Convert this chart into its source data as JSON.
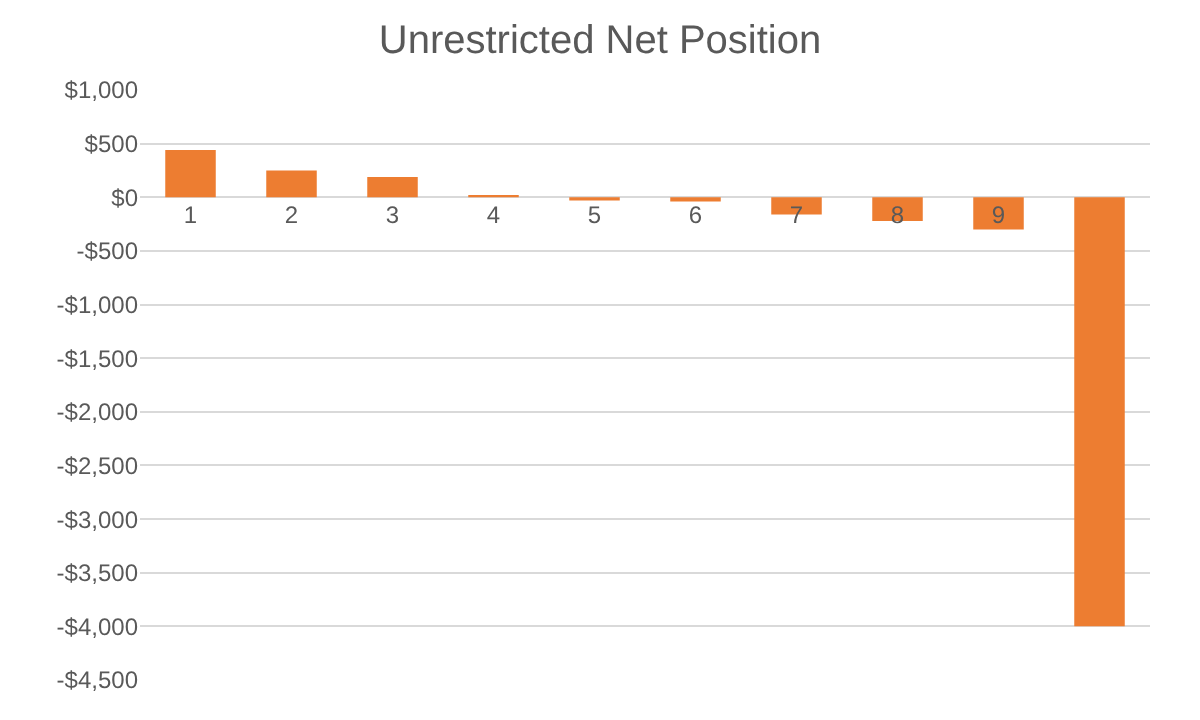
{
  "chart_data": {
    "type": "bar",
    "title": "Unrestricted Net Position",
    "categories": [
      "1",
      "2",
      "3",
      "4",
      "5",
      "6",
      "7",
      "8",
      "9",
      null
    ],
    "values": [
      440,
      250,
      190,
      20,
      -30,
      -40,
      -160,
      -220,
      -300,
      -4000
    ],
    "color": "#ed7d31",
    "ylim": [
      -4500,
      1000
    ],
    "yticks": [
      {
        "value": 1000,
        "label": "$1,000"
      },
      {
        "value": 500,
        "label": "$500"
      },
      {
        "value": 0,
        "label": "$0"
      },
      {
        "value": -500,
        "label": "-$500"
      },
      {
        "value": -1000,
        "label": "-$1,000"
      },
      {
        "value": -1500,
        "label": "-$1,500"
      },
      {
        "value": -2000,
        "label": "-$2,000"
      },
      {
        "value": -2500,
        "label": "-$2,500"
      },
      {
        "value": -3000,
        "label": "-$3,000"
      },
      {
        "value": -3500,
        "label": "-$3,500"
      },
      {
        "value": -4000,
        "label": "-$4,000"
      },
      {
        "value": -4500,
        "label": "-$4,500"
      }
    ],
    "grid": true
  }
}
